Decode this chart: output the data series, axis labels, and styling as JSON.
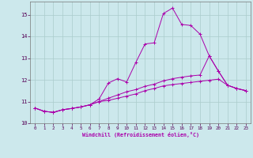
{
  "xlabel": "Windchill (Refroidissement éolien,°C)",
  "background_color": "#cce8ec",
  "line_color": "#aa00aa",
  "grid_color": "#aacccc",
  "xlim": [
    -0.5,
    23.5
  ],
  "ylim": [
    10.0,
    15.6
  ],
  "xticks": [
    0,
    1,
    2,
    3,
    4,
    5,
    6,
    7,
    8,
    9,
    10,
    11,
    12,
    13,
    14,
    15,
    16,
    17,
    18,
    19,
    20,
    21,
    22,
    23
  ],
  "yticks": [
    10,
    11,
    12,
    13,
    14,
    15
  ],
  "curve1_y": [
    10.7,
    10.55,
    10.5,
    10.62,
    10.68,
    10.75,
    10.85,
    11.12,
    11.85,
    12.05,
    11.9,
    12.8,
    13.65,
    13.7,
    15.05,
    15.3,
    14.55,
    14.5,
    14.1,
    13.1,
    12.4,
    11.75,
    11.6,
    11.5
  ],
  "curve2_y": [
    10.7,
    10.55,
    10.5,
    10.62,
    10.68,
    10.75,
    10.85,
    11.0,
    11.15,
    11.3,
    11.45,
    11.55,
    11.7,
    11.8,
    11.95,
    12.05,
    12.12,
    12.18,
    12.22,
    13.1,
    12.4,
    11.75,
    11.6,
    11.5
  ],
  "curve3_y": [
    10.7,
    10.55,
    10.5,
    10.62,
    10.68,
    10.75,
    10.85,
    11.0,
    11.05,
    11.15,
    11.25,
    11.35,
    11.5,
    11.6,
    11.72,
    11.78,
    11.83,
    11.88,
    11.93,
    11.98,
    12.03,
    11.75,
    11.6,
    11.5
  ]
}
